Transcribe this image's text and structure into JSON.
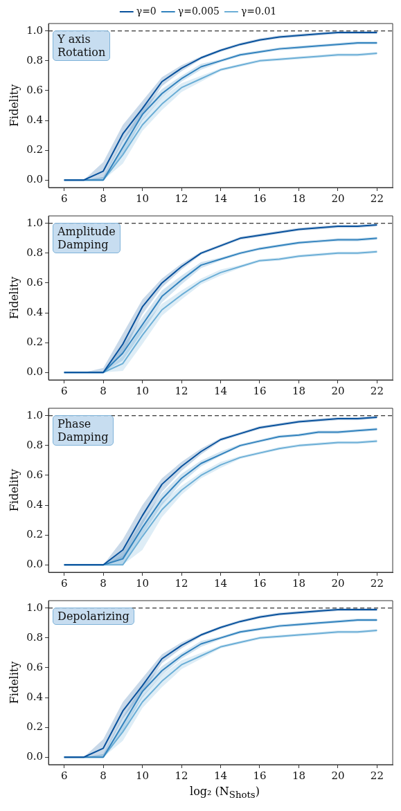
{
  "chart_data": [
    {
      "type": "line",
      "x": [
        6,
        7,
        8,
        9,
        10,
        11,
        12,
        13,
        14,
        15,
        16,
        17,
        18,
        19,
        20,
        21,
        22
      ],
      "ylabel": "Fidelity",
      "xlim": [
        5.2,
        22.8
      ],
      "ylim": [
        -0.05,
        1.05
      ],
      "xticks": [
        6,
        8,
        10,
        12,
        14,
        16,
        18,
        20,
        22
      ],
      "yticks": [
        {
          "value": 0,
          "label": "0.0"
        },
        {
          "value": 0.2,
          "label": "0.2"
        },
        {
          "value": 0.4,
          "label": "0.4"
        },
        {
          "value": 0.6,
          "label": "0.6"
        },
        {
          "value": 0.8,
          "label": "0.8"
        },
        {
          "value": 1,
          "label": "1.0"
        }
      ],
      "grid": false,
      "legend": "top",
      "marker": "none",
      "line_style": "solid",
      "annotations": [
        "Y axis\nRotation"
      ],
      "ref_lines": [
        {
          "axis": "y",
          "value": 1,
          "color": "#000000",
          "line_style": "dashed"
        }
      ],
      "series": [
        {
          "name": "γ=0",
          "color": "#08519c",
          "values": [
            0,
            0,
            0.06,
            0.31,
            0.48,
            0.66,
            0.75,
            0.82,
            0.87,
            0.91,
            0.94,
            0.96,
            0.97,
            0.98,
            0.99,
            0.99,
            0.99
          ],
          "lower": [
            0,
            0,
            0.01,
            0.26,
            0.43,
            0.63,
            0.73,
            0.81,
            0.86,
            0.9,
            0.93,
            0.95,
            0.96,
            0.97,
            0.98,
            0.98,
            0.98
          ],
          "upper": [
            0,
            0,
            0.12,
            0.37,
            0.53,
            0.69,
            0.77,
            0.83,
            0.88,
            0.92,
            0.95,
            0.97,
            0.98,
            0.99,
            1.0,
            1.0,
            1.0
          ]
        },
        {
          "name": "γ=0.005",
          "color": "#3182bd",
          "values": [
            0,
            0,
            0,
            0.22,
            0.44,
            0.58,
            0.68,
            0.76,
            0.8,
            0.84,
            0.86,
            0.88,
            0.89,
            0.9,
            0.91,
            0.92,
            0.92
          ],
          "lower": [
            0,
            0,
            0,
            0.17,
            0.4,
            0.55,
            0.66,
            0.74,
            0.79,
            0.83,
            0.85,
            0.87,
            0.88,
            0.89,
            0.9,
            0.91,
            0.91
          ],
          "upper": [
            0,
            0,
            0.02,
            0.27,
            0.48,
            0.61,
            0.7,
            0.78,
            0.81,
            0.85,
            0.87,
            0.89,
            0.9,
            0.91,
            0.92,
            0.93,
            0.93
          ]
        },
        {
          "name": "γ=0.01",
          "color": "#6baed6",
          "values": [
            0,
            0,
            0,
            0.17,
            0.37,
            0.51,
            0.62,
            0.68,
            0.74,
            0.77,
            0.8,
            0.81,
            0.82,
            0.83,
            0.84,
            0.84,
            0.85
          ],
          "lower": [
            0,
            0,
            0,
            0.11,
            0.33,
            0.47,
            0.59,
            0.66,
            0.73,
            0.76,
            0.79,
            0.8,
            0.81,
            0.82,
            0.83,
            0.83,
            0.84
          ],
          "upper": [
            0,
            0,
            0.02,
            0.22,
            0.41,
            0.55,
            0.65,
            0.7,
            0.75,
            0.78,
            0.81,
            0.82,
            0.83,
            0.84,
            0.85,
            0.85,
            0.86
          ]
        }
      ]
    },
    {
      "type": "line",
      "x": [
        6,
        7,
        8,
        9,
        10,
        11,
        12,
        13,
        14,
        15,
        16,
        17,
        18,
        19,
        20,
        21,
        22
      ],
      "ylabel": "Fidelity",
      "xlim": [
        5.2,
        22.8
      ],
      "ylim": [
        -0.05,
        1.05
      ],
      "xticks": [
        6,
        8,
        10,
        12,
        14,
        16,
        18,
        20,
        22
      ],
      "yticks": [
        {
          "value": 0,
          "label": "0.0"
        },
        {
          "value": 0.2,
          "label": "0.2"
        },
        {
          "value": 0.4,
          "label": "0.4"
        },
        {
          "value": 0.6,
          "label": "0.6"
        },
        {
          "value": 0.8,
          "label": "0.8"
        },
        {
          "value": 1,
          "label": "1.0"
        }
      ],
      "grid": false,
      "marker": "none",
      "line_style": "solid",
      "annotations": [
        "Amplitude\nDamping"
      ],
      "ref_lines": [
        {
          "axis": "y",
          "value": 1,
          "color": "#000000",
          "line_style": "dashed"
        }
      ],
      "series": [
        {
          "color": "#08519c",
          "values": [
            0,
            0,
            0,
            0.19,
            0.44,
            0.6,
            0.71,
            0.8,
            0.85,
            0.9,
            0.92,
            0.94,
            0.96,
            0.97,
            0.98,
            0.98,
            0.99
          ],
          "lower": [
            0,
            0,
            0,
            0.12,
            0.39,
            0.57,
            0.69,
            0.79,
            0.84,
            0.89,
            0.91,
            0.93,
            0.95,
            0.96,
            0.97,
            0.97,
            0.98
          ],
          "upper": [
            0,
            0,
            0.03,
            0.26,
            0.49,
            0.63,
            0.73,
            0.81,
            0.86,
            0.91,
            0.93,
            0.95,
            0.97,
            0.98,
            0.99,
            0.99,
            1.0
          ]
        },
        {
          "color": "#3182bd",
          "values": [
            0,
            0,
            0,
            0.13,
            0.32,
            0.51,
            0.62,
            0.72,
            0.76,
            0.8,
            0.83,
            0.85,
            0.87,
            0.88,
            0.89,
            0.89,
            0.9
          ],
          "lower": [
            0,
            0,
            0,
            0.08,
            0.27,
            0.47,
            0.59,
            0.7,
            0.75,
            0.79,
            0.82,
            0.84,
            0.86,
            0.87,
            0.88,
            0.88,
            0.89
          ],
          "upper": [
            0,
            0,
            0,
            0.18,
            0.37,
            0.55,
            0.65,
            0.74,
            0.77,
            0.81,
            0.84,
            0.86,
            0.88,
            0.89,
            0.9,
            0.9,
            0.91
          ]
        },
        {
          "color": "#6baed6",
          "values": [
            0,
            0,
            0,
            0.06,
            0.25,
            0.42,
            0.52,
            0.61,
            0.67,
            0.71,
            0.75,
            0.76,
            0.78,
            0.79,
            0.8,
            0.8,
            0.81
          ],
          "lower": [
            0,
            0,
            0,
            0.01,
            0.19,
            0.38,
            0.49,
            0.59,
            0.65,
            0.7,
            0.74,
            0.75,
            0.77,
            0.78,
            0.79,
            0.79,
            0.8
          ],
          "upper": [
            0,
            0,
            0,
            0.11,
            0.31,
            0.46,
            0.55,
            0.63,
            0.69,
            0.72,
            0.76,
            0.77,
            0.79,
            0.8,
            0.81,
            0.81,
            0.82
          ]
        }
      ]
    },
    {
      "type": "line",
      "x": [
        6,
        7,
        8,
        9,
        10,
        11,
        12,
        13,
        14,
        15,
        16,
        17,
        18,
        19,
        20,
        21,
        22
      ],
      "ylabel": "Fidelity",
      "xlim": [
        5.2,
        22.8
      ],
      "ylim": [
        -0.05,
        1.05
      ],
      "xticks": [
        6,
        8,
        10,
        12,
        14,
        16,
        18,
        20,
        22
      ],
      "yticks": [
        {
          "value": 0,
          "label": "0.0"
        },
        {
          "value": 0.2,
          "label": "0.2"
        },
        {
          "value": 0.4,
          "label": "0.4"
        },
        {
          "value": 0.6,
          "label": "0.6"
        },
        {
          "value": 0.8,
          "label": "0.8"
        },
        {
          "value": 1,
          "label": "1.0"
        }
      ],
      "grid": false,
      "marker": "none",
      "line_style": "solid",
      "annotations": [
        "Phase\nDamping"
      ],
      "ref_lines": [
        {
          "axis": "y",
          "value": 1,
          "color": "#000000",
          "line_style": "dashed"
        }
      ],
      "series": [
        {
          "color": "#08519c",
          "values": [
            0,
            0,
            0,
            0.1,
            0.33,
            0.54,
            0.66,
            0.76,
            0.84,
            0.88,
            0.92,
            0.94,
            0.96,
            0.97,
            0.98,
            0.98,
            0.99
          ],
          "lower": [
            0,
            0,
            0,
            0.04,
            0.27,
            0.49,
            0.63,
            0.74,
            0.83,
            0.87,
            0.91,
            0.93,
            0.95,
            0.96,
            0.97,
            0.97,
            0.98
          ],
          "upper": [
            0,
            0,
            0,
            0.17,
            0.4,
            0.58,
            0.69,
            0.78,
            0.85,
            0.89,
            0.93,
            0.95,
            0.97,
            0.98,
            0.99,
            0.99,
            1.0
          ]
        },
        {
          "color": "#3182bd",
          "values": [
            0,
            0,
            0,
            0.04,
            0.25,
            0.44,
            0.58,
            0.68,
            0.74,
            0.8,
            0.83,
            0.86,
            0.87,
            0.89,
            0.89,
            0.9,
            0.91
          ],
          "lower": [
            0,
            0,
            0,
            0,
            0.2,
            0.4,
            0.55,
            0.66,
            0.73,
            0.79,
            0.82,
            0.85,
            0.86,
            0.88,
            0.88,
            0.89,
            0.9
          ],
          "upper": [
            0,
            0,
            0,
            0.09,
            0.3,
            0.48,
            0.61,
            0.7,
            0.76,
            0.81,
            0.84,
            0.87,
            0.88,
            0.9,
            0.9,
            0.91,
            0.92
          ]
        },
        {
          "color": "#6baed6",
          "values": [
            0,
            0,
            0,
            0,
            0.19,
            0.37,
            0.5,
            0.6,
            0.67,
            0.72,
            0.75,
            0.78,
            0.8,
            0.81,
            0.82,
            0.82,
            0.83
          ],
          "lower": [
            0,
            0,
            0,
            0,
            0.1,
            0.32,
            0.47,
            0.58,
            0.65,
            0.71,
            0.74,
            0.77,
            0.79,
            0.8,
            0.81,
            0.81,
            0.82
          ],
          "upper": [
            0,
            0,
            0,
            0.06,
            0.24,
            0.42,
            0.53,
            0.62,
            0.69,
            0.73,
            0.76,
            0.79,
            0.81,
            0.82,
            0.83,
            0.83,
            0.84
          ]
        }
      ]
    },
    {
      "type": "line",
      "x": [
        6,
        7,
        8,
        9,
        10,
        11,
        12,
        13,
        14,
        15,
        16,
        17,
        18,
        19,
        20,
        21,
        22
      ],
      "xlabel": "log₂ (N$_{Shots}$)",
      "ylabel": "Fidelity",
      "xlim": [
        5.2,
        22.8
      ],
      "ylim": [
        -0.05,
        1.05
      ],
      "xticks": [
        6,
        8,
        10,
        12,
        14,
        16,
        18,
        20,
        22
      ],
      "yticks": [
        {
          "value": 0,
          "label": "0.0"
        },
        {
          "value": 0.2,
          "label": "0.2"
        },
        {
          "value": 0.4,
          "label": "0.4"
        },
        {
          "value": 0.6,
          "label": "0.6"
        },
        {
          "value": 0.8,
          "label": "0.8"
        },
        {
          "value": 1,
          "label": "1.0"
        }
      ],
      "grid": false,
      "marker": "none",
      "line_style": "solid",
      "annotations": [
        "Depolarizing"
      ],
      "ref_lines": [
        {
          "axis": "y",
          "value": 1,
          "color": "#000000",
          "line_style": "dashed"
        }
      ],
      "series": [
        {
          "color": "#08519c",
          "values": [
            0,
            0,
            0.06,
            0.31,
            0.48,
            0.66,
            0.75,
            0.82,
            0.87,
            0.91,
            0.94,
            0.96,
            0.97,
            0.98,
            0.99,
            0.99,
            0.99
          ],
          "lower": [
            0,
            0,
            0.01,
            0.26,
            0.43,
            0.63,
            0.73,
            0.81,
            0.86,
            0.9,
            0.93,
            0.95,
            0.96,
            0.97,
            0.98,
            0.98,
            0.98
          ],
          "upper": [
            0,
            0,
            0.12,
            0.37,
            0.53,
            0.69,
            0.77,
            0.83,
            0.88,
            0.92,
            0.95,
            0.97,
            0.98,
            0.99,
            1.0,
            1.0,
            1.0
          ]
        },
        {
          "color": "#3182bd",
          "values": [
            0,
            0,
            0,
            0.22,
            0.44,
            0.58,
            0.68,
            0.76,
            0.8,
            0.84,
            0.86,
            0.88,
            0.89,
            0.9,
            0.91,
            0.92,
            0.92
          ],
          "lower": [
            0,
            0,
            0,
            0.17,
            0.4,
            0.55,
            0.66,
            0.74,
            0.79,
            0.83,
            0.85,
            0.87,
            0.88,
            0.89,
            0.9,
            0.91,
            0.91
          ],
          "upper": [
            0,
            0,
            0.02,
            0.27,
            0.48,
            0.61,
            0.7,
            0.78,
            0.81,
            0.85,
            0.87,
            0.89,
            0.9,
            0.91,
            0.92,
            0.93,
            0.93
          ]
        },
        {
          "color": "#6baed6",
          "values": [
            0,
            0,
            0,
            0.17,
            0.37,
            0.51,
            0.62,
            0.68,
            0.74,
            0.77,
            0.8,
            0.81,
            0.82,
            0.83,
            0.84,
            0.84,
            0.85
          ],
          "lower": [
            0,
            0,
            0,
            0.11,
            0.33,
            0.47,
            0.59,
            0.66,
            0.73,
            0.76,
            0.79,
            0.8,
            0.81,
            0.82,
            0.83,
            0.83,
            0.84
          ],
          "upper": [
            0,
            0,
            0.02,
            0.22,
            0.41,
            0.55,
            0.65,
            0.7,
            0.75,
            0.78,
            0.81,
            0.82,
            0.83,
            0.84,
            0.85,
            0.85,
            0.86
          ]
        }
      ]
    }
  ]
}
